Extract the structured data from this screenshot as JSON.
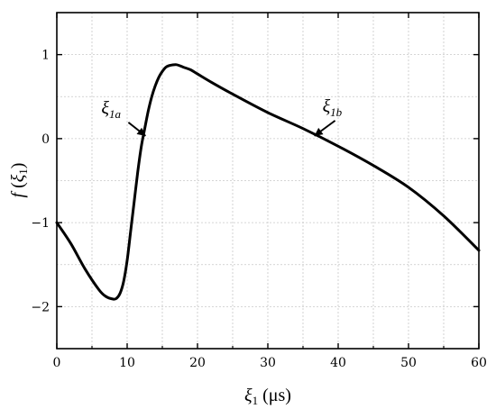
{
  "chart_data": {
    "type": "line",
    "xlabel": "ξ1 (μs)",
    "xlabel_parts": {
      "symbol": "ξ",
      "sub": "1",
      "unit": " (μs)"
    },
    "ylabel": "f(ξ1)",
    "ylabel_parts": {
      "f": "f",
      "open": " (",
      "symbol": "ξ",
      "sub": "1",
      "close": ")"
    },
    "xlim": [
      0,
      60
    ],
    "ylim": [
      -2.5,
      1.5
    ],
    "xticks": [
      0,
      10,
      20,
      30,
      40,
      50,
      60
    ],
    "yticks": [
      1,
      0,
      -1,
      -2
    ],
    "ytick_labels": [
      "1",
      "0",
      "−1",
      "−2"
    ],
    "grid": true,
    "series": [
      {
        "x": [
          0,
          2,
          4,
          6,
          7,
          8,
          8.5,
          9,
          9.5,
          10,
          10.5,
          11,
          11.5,
          12,
          12.5,
          13,
          13.5,
          14,
          14.5,
          15,
          15.5,
          16,
          17,
          18,
          19,
          20,
          22,
          25,
          30,
          35,
          40,
          45,
          50,
          55,
          60
        ],
        "y": [
          -1.0,
          -1.25,
          -1.55,
          -1.8,
          -1.88,
          -1.91,
          -1.9,
          -1.84,
          -1.7,
          -1.45,
          -1.1,
          -0.75,
          -0.4,
          -0.1,
          0.12,
          0.33,
          0.5,
          0.63,
          0.73,
          0.8,
          0.85,
          0.87,
          0.88,
          0.85,
          0.82,
          0.77,
          0.67,
          0.53,
          0.31,
          0.12,
          -0.09,
          -0.32,
          -0.58,
          -0.92,
          -1.33
        ]
      }
    ],
    "annotations": [
      {
        "symbol": "ξ",
        "sub": "1a",
        "x": 13,
        "y": 0
      },
      {
        "symbol": "ξ",
        "sub": "1b",
        "x": 37,
        "y": 0
      }
    ]
  }
}
